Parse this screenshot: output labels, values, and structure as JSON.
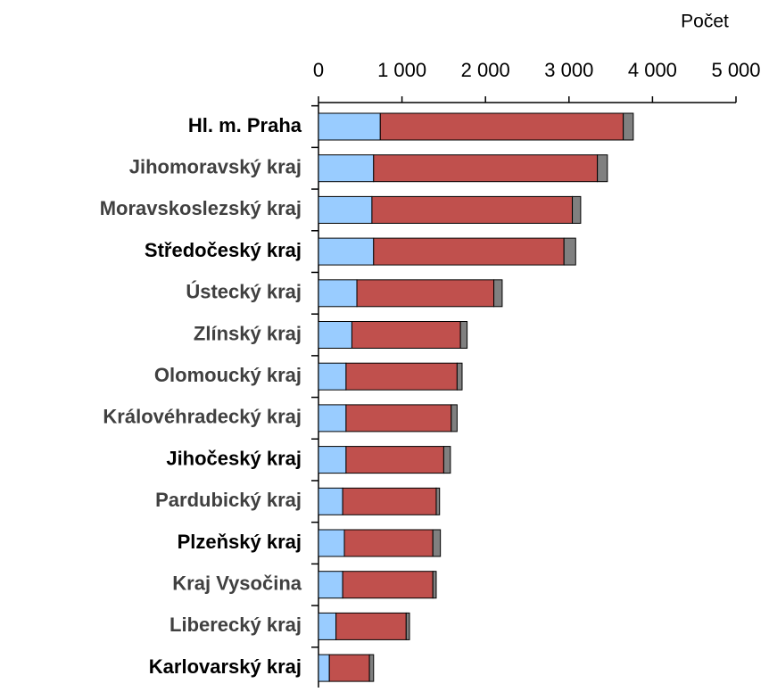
{
  "chart_data": {
    "type": "stacked-barh",
    "x_label": "Počet",
    "categories": [
      "Hl. m. Praha",
      "Jihomoravský kraj",
      "Moravskoslezský kraj",
      "Středočeský kraj",
      "Ústecký kraj",
      "Zlínský kraj",
      "Olomoucký kraj",
      "Královéhradecký kraj",
      "Jihočeský kraj",
      "Pardubický kraj",
      "Plzeňský kraj",
      "Kraj Vysočina",
      "Liberecký kraj",
      "Karlovarský kraj"
    ],
    "category_colors": [
      "#000000",
      "#404040",
      "#404040",
      "#000000",
      "#404040",
      "#404040",
      "#404040",
      "#404040",
      "#000000",
      "#404040",
      "#000000",
      "#404040",
      "#404040",
      "#000000"
    ],
    "series": [
      {
        "color": "#99ccff",
        "values": [
          740,
          660,
          640,
          660,
          460,
          400,
          330,
          330,
          330,
          290,
          310,
          290,
          210,
          130
        ]
      },
      {
        "color": "#c0504d",
        "values": [
          2910,
          2680,
          2400,
          2280,
          1640,
          1300,
          1330,
          1260,
          1170,
          1120,
          1060,
          1080,
          840,
          480
        ]
      },
      {
        "color": "#808080",
        "values": [
          120,
          120,
          100,
          140,
          100,
          80,
          60,
          70,
          80,
          40,
          90,
          40,
          40,
          50
        ]
      }
    ],
    "xlim": [
      0,
      5000
    ],
    "xticks": [
      0,
      {
        "value": 1000,
        "label": "1 000"
      },
      {
        "value": 2000,
        "label": "2 000"
      },
      {
        "value": 3000,
        "label": "3 000"
      },
      {
        "value": 4000,
        "label": "4 000"
      },
      {
        "value": 5000,
        "label": "5 000"
      }
    ]
  }
}
